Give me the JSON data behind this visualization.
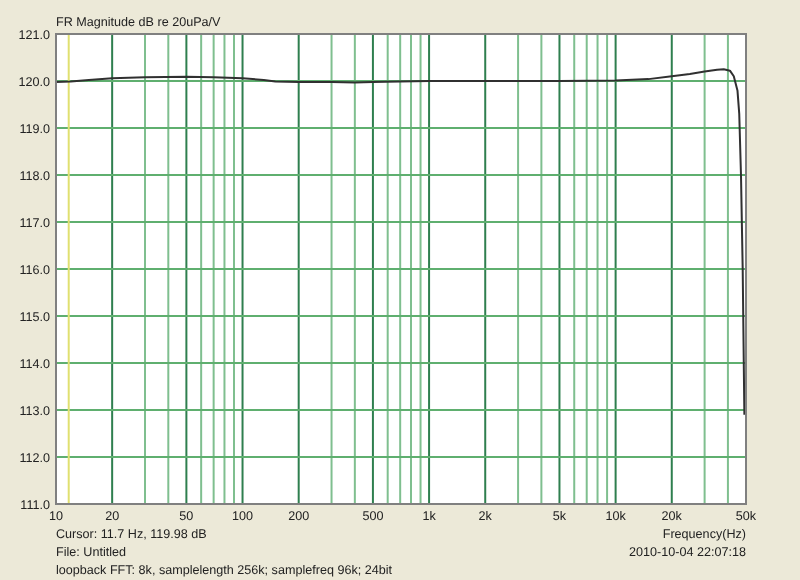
{
  "chart_data": {
    "type": "line",
    "title": "FR Magnitude dB re 20uPa/V",
    "xlabel": "Frequency(Hz)",
    "annotations": [
      "Cursor:    11.7 Hz, 119.98 dB",
      "File: Untitled",
      "loopback FFT: 8k, samplelength 256k; samplefreq 96k; 24bit",
      "2010-10-04  22:07:18"
    ],
    "log": "x",
    "grid": true,
    "line_style": "solid",
    "xlim": [
      10,
      50000
    ],
    "ylim": [
      111,
      121
    ],
    "xticks": [
      10,
      20,
      {
        "value": 30,
        "label": null
      },
      {
        "value": 40,
        "label": null
      },
      50,
      {
        "value": 60,
        "label": null
      },
      {
        "value": 70,
        "label": null
      },
      {
        "value": 80,
        "label": null
      },
      {
        "value": 90,
        "label": null
      },
      100,
      200,
      {
        "value": 300,
        "label": null
      },
      {
        "value": 400,
        "label": null
      },
      500,
      {
        "value": 600,
        "label": null
      },
      {
        "value": 700,
        "label": null
      },
      {
        "value": 800,
        "label": null
      },
      {
        "value": 900,
        "label": null
      },
      {
        "value": 1000,
        "label": "1k"
      },
      {
        "value": 2000,
        "label": "2k"
      },
      {
        "value": 3000,
        "label": null
      },
      {
        "value": 4000,
        "label": null
      },
      {
        "value": 5000,
        "label": "5k"
      },
      {
        "value": 6000,
        "label": null
      },
      {
        "value": 7000,
        "label": null
      },
      {
        "value": 8000,
        "label": null
      },
      {
        "value": 9000,
        "label": null
      },
      {
        "value": 10000,
        "label": "10k"
      },
      {
        "value": 20000,
        "label": "20k"
      },
      {
        "value": 30000,
        "label": null
      },
      {
        "value": 40000,
        "label": null
      },
      {
        "value": 50000,
        "label": "50k"
      }
    ],
    "yticks": [
      {
        "value": 111,
        "label": "111.0"
      },
      {
        "value": 112,
        "label": "112.0"
      },
      {
        "value": 113,
        "label": "113.0"
      },
      {
        "value": 114,
        "label": "114.0"
      },
      {
        "value": 115,
        "label": "115.0"
      },
      {
        "value": 116,
        "label": "116.0"
      },
      {
        "value": 117,
        "label": "117.0"
      },
      {
        "value": 118,
        "label": "118.0"
      },
      {
        "value": 119,
        "label": "119.0"
      },
      {
        "value": 120,
        "label": "120.0"
      },
      {
        "value": 121,
        "label": "121.0"
      }
    ],
    "ref_lines": [
      {
        "axis": "x",
        "value": 11.7,
        "color": "#e0e070"
      }
    ],
    "series": [
      {
        "color": "#303030",
        "x": [
          10,
          12,
          15,
          20,
          30,
          50,
          70,
          100,
          130,
          150,
          200,
          300,
          400,
          500,
          700,
          1000,
          2000,
          5000,
          10000,
          15000,
          20000,
          25000,
          30000,
          35000,
          38000,
          41000,
          43000,
          45000,
          46000,
          47000,
          48000,
          49000
        ],
        "values": [
          119.98,
          119.99,
          120.02,
          120.06,
          120.08,
          120.09,
          120.08,
          120.06,
          120.02,
          119.99,
          119.98,
          119.98,
          119.97,
          119.98,
          119.99,
          120.0,
          120.0,
          120.0,
          120.01,
          120.04,
          120.1,
          120.15,
          120.2,
          120.24,
          120.25,
          120.22,
          120.1,
          119.8,
          119.3,
          118.0,
          116.0,
          112.9
        ]
      }
    ]
  }
}
